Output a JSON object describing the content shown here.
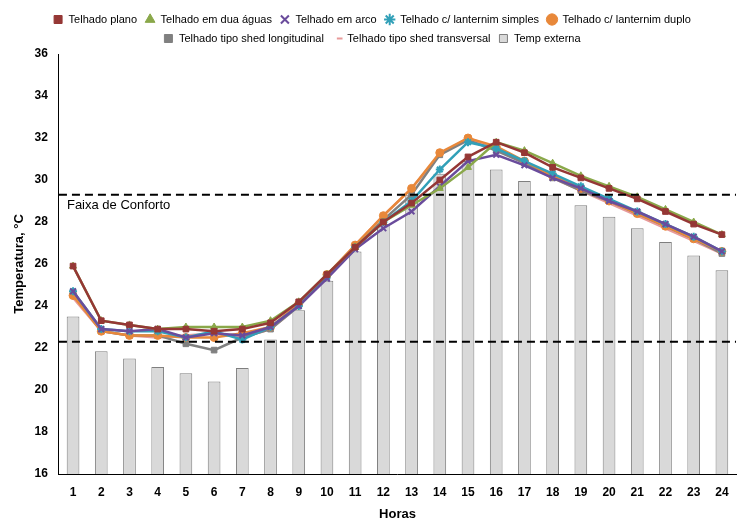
{
  "chart_data": {
    "type": "bar",
    "x_label": "Horas",
    "y_label": "Temperatura, °C",
    "categories": [
      "1",
      "2",
      "3",
      "4",
      "5",
      "6",
      "7",
      "8",
      "9",
      "10",
      "11",
      "12",
      "13",
      "14",
      "15",
      "16",
      "17",
      "18",
      "19",
      "20",
      "21",
      "22",
      "23",
      "24"
    ],
    "ylim": [
      16,
      36
    ],
    "yticks": [
      16,
      18,
      20,
      22,
      24,
      26,
      28,
      30,
      32,
      34,
      36
    ],
    "grid": false,
    "legend": "top",
    "comfort_range": {
      "label": "Faixa de Conforto",
      "values": [
        22.3,
        29.3
      ],
      "line_style": "dashed",
      "color": "#000000"
    },
    "series": [
      {
        "name": "Temp externa",
        "type": "bar",
        "color": "#d9d9d9",
        "values": [
          23.5,
          21.85,
          21.5,
          21.1,
          20.8,
          20.4,
          21.05,
          22.4,
          23.8,
          25.2,
          26.6,
          27.9,
          29.3,
          30.3,
          30.9,
          30.5,
          29.95,
          29.3,
          28.8,
          28.25,
          27.7,
          27.05,
          26.4,
          25.7
        ]
      },
      {
        "name": "Telhado plano",
        "type": "line",
        "color": "#953735",
        "marker": "square",
        "values": [
          25.9,
          23.3,
          23.1,
          22.9,
          22.9,
          22.8,
          22.9,
          23.2,
          24.2,
          25.5,
          26.8,
          28.0,
          28.9,
          30.0,
          31.1,
          31.8,
          31.3,
          30.6,
          30.1,
          29.6,
          29.1,
          28.5,
          27.9,
          27.4
        ]
      },
      {
        "name": "Telhado em dua águas",
        "type": "line",
        "color": "#8aa84a",
        "marker": "triangle",
        "values": [
          25.9,
          23.3,
          23.1,
          22.9,
          23.0,
          23.0,
          23.0,
          23.3,
          24.2,
          25.5,
          26.8,
          28.0,
          28.8,
          29.6,
          30.6,
          31.8,
          31.4,
          30.8,
          30.2,
          29.7,
          29.2,
          28.6,
          28.0,
          27.4
        ]
      },
      {
        "name": "Telhado em arco",
        "type": "line",
        "color": "#6a4c9c",
        "marker": "x",
        "values": [
          24.7,
          22.9,
          22.8,
          22.9,
          22.5,
          22.7,
          22.6,
          23.0,
          24.0,
          25.3,
          26.7,
          27.7,
          28.5,
          29.7,
          30.9,
          31.2,
          30.7,
          30.1,
          29.6,
          29.0,
          28.5,
          27.9,
          27.3,
          26.6
        ]
      },
      {
        "name": "Telhado c/ lanternim simples",
        "type": "line",
        "color": "#31a0b8",
        "marker": "star",
        "values": [
          24.7,
          22.9,
          22.8,
          22.8,
          22.5,
          22.8,
          22.4,
          23.0,
          24.0,
          25.4,
          26.8,
          28.0,
          29.0,
          30.5,
          31.8,
          31.5,
          30.9,
          30.3,
          29.7,
          29.1,
          28.5,
          27.9,
          27.3,
          26.6
        ]
      },
      {
        "name": "Telhado c/ lanternim duplo",
        "type": "line",
        "color": "#e8883a",
        "marker": "circle",
        "values": [
          24.5,
          22.8,
          22.6,
          22.6,
          22.5,
          22.5,
          22.7,
          23.0,
          24.1,
          25.5,
          26.9,
          28.3,
          29.6,
          31.3,
          32.0,
          31.6,
          30.9,
          30.2,
          29.6,
          29.0,
          28.4,
          27.8,
          27.2,
          26.6
        ]
      },
      {
        "name": "Telhado tipo shed longitudinal",
        "type": "line",
        "color": "#808080",
        "marker": "square",
        "values": [
          24.6,
          22.8,
          22.6,
          22.6,
          22.2,
          21.9,
          22.5,
          22.9,
          24.0,
          25.4,
          26.8,
          28.1,
          29.3,
          31.2,
          31.9,
          31.4,
          30.8,
          30.1,
          29.5,
          29.0,
          28.4,
          27.8,
          27.2,
          26.5
        ]
      },
      {
        "name": "Telhado tipo shed transversal",
        "type": "line",
        "color": "#e89a9a",
        "marker": "dash",
        "values": [
          24.4,
          22.8,
          22.6,
          22.5,
          22.6,
          22.7,
          22.5,
          22.9,
          24.0,
          25.4,
          26.9,
          28.3,
          29.6,
          31.2,
          32.0,
          31.5,
          30.8,
          30.1,
          29.5,
          28.9,
          28.3,
          27.7,
          27.1,
          26.5
        ]
      }
    ]
  }
}
